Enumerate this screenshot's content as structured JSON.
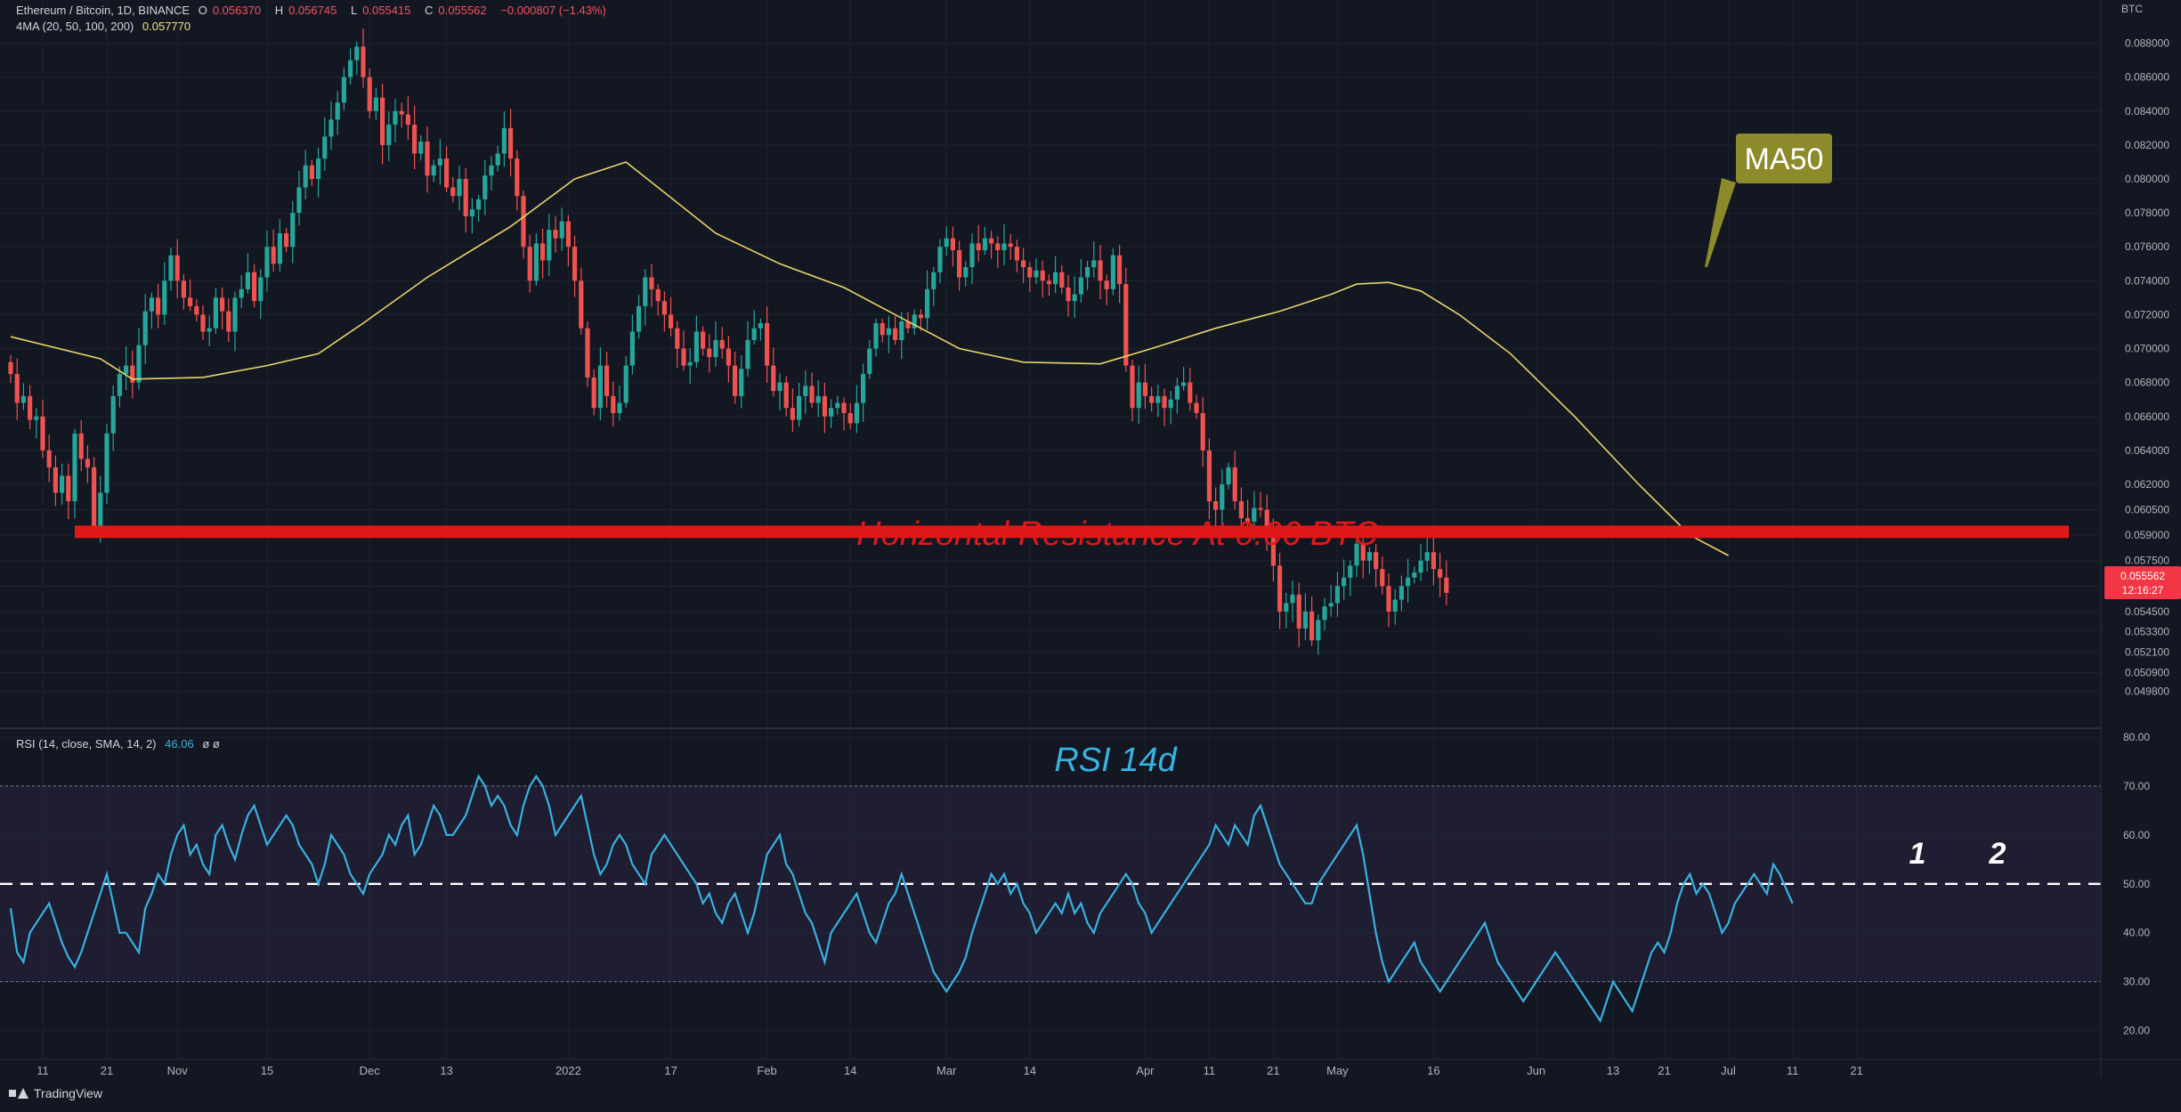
{
  "legend": {
    "title": "Ethereum / Bitcoin, 1D, BINANCE",
    "open_label": "O",
    "open": "0.056370",
    "high_label": "H",
    "high": "0.056745",
    "low_label": "L",
    "low": "0.055415",
    "close_label": "C",
    "close": "0.055562",
    "change": "−0.000807 (−1.43%)",
    "ma_label": "4MA (20, 50, 100, 200)",
    "ma_value": "0.057770",
    "rsi_label": "RSI (14, close, SMA, 14, 2)",
    "rsi_value": "46.06",
    "rsi_extra": "ø  ø"
  },
  "branding": {
    "name": "TradingView"
  },
  "currency": "BTC",
  "price_tag": {
    "value": "0.055562",
    "countdown": "12:16:27"
  },
  "annotations": {
    "ma_callout": "MA50",
    "resistance": "Horizontal Resistance At 0.06 BTC",
    "rsi_title": "RSI 14d",
    "mark1": "1",
    "mark2": "2"
  },
  "colors": {
    "background": "#131722",
    "up": "#26a69a",
    "down": "#ef5350",
    "ma": "#e8d66a",
    "rsi": "#38b2e0",
    "resistance": "#e01818",
    "callout_bg": "#8c8a2a"
  },
  "chart_data": [
    {
      "type": "candlestick",
      "ylim": [
        0.0483,
        0.0895
      ],
      "yticks": [
        "0.088000",
        "0.086000",
        "0.084000",
        "0.082000",
        "0.080000",
        "0.078000",
        "0.076000",
        "0.074000",
        "0.072000",
        "0.070000",
        "0.068000",
        "0.066000",
        "0.064000",
        "0.062000",
        "0.060500",
        "0.059000",
        "0.057500",
        "0.056000",
        "0.054500",
        "0.053300",
        "0.052100",
        "0.050900",
        "0.049800"
      ],
      "xticks": [
        {
          "label": "11",
          "t": 5
        },
        {
          "label": "21",
          "t": 15
        },
        {
          "label": "Nov",
          "t": 26
        },
        {
          "label": "15",
          "t": 40
        },
        {
          "label": "Dec",
          "t": 56
        },
        {
          "label": "13",
          "t": 68
        },
        {
          "label": "2022",
          "t": 87
        },
        {
          "label": "17",
          "t": 103
        },
        {
          "label": "Feb",
          "t": 118
        },
        {
          "label": "14",
          "t": 131
        },
        {
          "label": "Mar",
          "t": 146
        },
        {
          "label": "14",
          "t": 159
        },
        {
          "label": "Apr",
          "t": 177
        },
        {
          "label": "11",
          "t": 187
        },
        {
          "label": "21",
          "t": 197
        },
        {
          "label": "May",
          "t": 207
        },
        {
          "label": "16",
          "t": 222
        },
        {
          "label": "Jun",
          "t": 238
        },
        {
          "label": "13",
          "t": 250
        },
        {
          "label": "21",
          "t": 258
        },
        {
          "label": "Jul",
          "t": 268
        },
        {
          "label": "11",
          "t": 278
        },
        {
          "label": "21",
          "t": 288
        }
      ],
      "closes": [
        0.0685,
        0.0668,
        0.0672,
        0.0658,
        0.066,
        0.064,
        0.063,
        0.0615,
        0.0625,
        0.061,
        0.065,
        0.0635,
        0.063,
        0.0595,
        0.0615,
        0.065,
        0.0672,
        0.0685,
        0.069,
        0.068,
        0.0702,
        0.0722,
        0.073,
        0.072,
        0.074,
        0.0755,
        0.074,
        0.073,
        0.0725,
        0.072,
        0.071,
        0.0712,
        0.073,
        0.0722,
        0.071,
        0.073,
        0.0735,
        0.0745,
        0.0728,
        0.0742,
        0.076,
        0.075,
        0.0768,
        0.076,
        0.078,
        0.0795,
        0.0808,
        0.08,
        0.0812,
        0.0825,
        0.0835,
        0.0845,
        0.086,
        0.087,
        0.0878,
        0.086,
        0.084,
        0.0848,
        0.082,
        0.0832,
        0.084,
        0.0838,
        0.0832,
        0.0815,
        0.0822,
        0.0802,
        0.0808,
        0.0812,
        0.0795,
        0.079,
        0.08,
        0.0778,
        0.0782,
        0.0788,
        0.0802,
        0.0808,
        0.0815,
        0.083,
        0.0812,
        0.079,
        0.076,
        0.074,
        0.0762,
        0.0752,
        0.077,
        0.0765,
        0.0775,
        0.076,
        0.074,
        0.0712,
        0.0683,
        0.0665,
        0.069,
        0.0672,
        0.0662,
        0.0668,
        0.069,
        0.071,
        0.0725,
        0.0742,
        0.0735,
        0.0728,
        0.072,
        0.0712,
        0.07,
        0.069,
        0.0692,
        0.071,
        0.07,
        0.0695,
        0.0705,
        0.07,
        0.069,
        0.0672,
        0.0688,
        0.0705,
        0.0712,
        0.0715,
        0.069,
        0.0675,
        0.068,
        0.0665,
        0.0658,
        0.0672,
        0.0678,
        0.0668,
        0.0672,
        0.066,
        0.0665,
        0.0668,
        0.0662,
        0.0656,
        0.0668,
        0.0685,
        0.07,
        0.0715,
        0.0708,
        0.0712,
        0.0705,
        0.0716,
        0.0712,
        0.072,
        0.0718,
        0.0735,
        0.0745,
        0.076,
        0.0765,
        0.0758,
        0.0742,
        0.0748,
        0.0762,
        0.0758,
        0.0765,
        0.0762,
        0.0758,
        0.0762,
        0.076,
        0.0752,
        0.0748,
        0.0742,
        0.0746,
        0.074,
        0.0738,
        0.0745,
        0.0736,
        0.0728,
        0.0732,
        0.0742,
        0.0748,
        0.0752,
        0.074,
        0.0735,
        0.0755,
        0.0738,
        0.069,
        0.0665,
        0.068,
        0.0672,
        0.0668,
        0.0672,
        0.0665,
        0.067,
        0.0678,
        0.068,
        0.0668,
        0.0662,
        0.064,
        0.061,
        0.0605,
        0.062,
        0.063,
        0.061,
        0.06,
        0.0598,
        0.0606,
        0.0605,
        0.059,
        0.0572,
        0.0545,
        0.055,
        0.0555,
        0.0535,
        0.0545,
        0.0528,
        0.054,
        0.0548,
        0.055,
        0.056,
        0.0565,
        0.0572,
        0.0585,
        0.0575,
        0.058,
        0.057,
        0.056,
        0.0545,
        0.0552,
        0.056,
        0.0565,
        0.0568,
        0.0575,
        0.058,
        0.057,
        0.0565,
        0.0556
      ],
      "ma50": [
        [
          0,
          0.0707
        ],
        [
          14,
          0.0694
        ],
        [
          19,
          0.0682
        ],
        [
          30,
          0.0683
        ],
        [
          40,
          0.069
        ],
        [
          48,
          0.0697
        ],
        [
          55,
          0.0715
        ],
        [
          65,
          0.0742
        ],
        [
          78,
          0.0772
        ],
        [
          88,
          0.08
        ],
        [
          96,
          0.081
        ],
        [
          102,
          0.0792
        ],
        [
          110,
          0.0768
        ],
        [
          120,
          0.075
        ],
        [
          130,
          0.0736
        ],
        [
          140,
          0.0716
        ],
        [
          148,
          0.07
        ],
        [
          158,
          0.0692
        ],
        [
          170,
          0.0691
        ],
        [
          178,
          0.07
        ],
        [
          188,
          0.0712
        ],
        [
          198,
          0.0722
        ],
        [
          206,
          0.0732
        ],
        [
          210,
          0.0738
        ],
        [
          215,
          0.0739
        ],
        [
          220,
          0.0734
        ],
        [
          226,
          0.072
        ],
        [
          234,
          0.0697
        ],
        [
          244,
          0.066
        ],
        [
          254,
          0.062
        ],
        [
          262,
          0.059
        ],
        [
          268,
          0.0578
        ]
      ],
      "resistance_level": 0.0592
    },
    {
      "type": "line",
      "title": "RSI 14d",
      "ylim": [
        15,
        80
      ],
      "yticks": [
        80,
        70,
        60,
        50,
        40,
        30,
        20
      ],
      "bands": [
        30,
        70
      ],
      "midline": 50,
      "values": [
        45,
        36,
        34,
        40,
        42,
        44,
        46,
        42,
        38,
        35,
        33,
        36,
        40,
        44,
        48,
        52,
        46,
        40,
        40,
        38,
        36,
        45,
        48,
        52,
        50,
        56,
        60,
        62,
        56,
        58,
        54,
        52,
        60,
        62,
        58,
        55,
        60,
        64,
        66,
        62,
        58,
        60,
        62,
        64,
        62,
        58,
        56,
        54,
        50,
        54,
        60,
        58,
        56,
        52,
        50,
        48,
        52,
        54,
        56,
        60,
        58,
        62,
        64,
        56,
        58,
        62,
        66,
        64,
        60,
        60,
        62,
        64,
        68,
        72,
        70,
        66,
        68,
        66,
        62,
        60,
        66,
        70,
        72,
        70,
        66,
        60,
        62,
        64,
        66,
        68,
        62,
        56,
        52,
        54,
        58,
        60,
        58,
        54,
        52,
        50,
        56,
        58,
        60,
        58,
        56,
        54,
        52,
        50,
        46,
        48,
        44,
        42,
        46,
        48,
        44,
        40,
        44,
        50,
        56,
        58,
        60,
        54,
        52,
        48,
        44,
        42,
        38,
        34,
        40,
        42,
        44,
        46,
        48,
        44,
        40,
        38,
        42,
        46,
        48,
        52,
        48,
        44,
        40,
        36,
        32,
        30,
        28,
        30,
        32,
        35,
        40,
        44,
        48,
        52,
        50,
        52,
        48,
        50,
        46,
        44,
        40,
        42,
        44,
        46,
        44,
        48,
        44,
        46,
        42,
        40,
        44,
        46,
        48,
        50,
        52,
        50,
        46,
        44,
        40,
        42,
        44,
        46,
        48,
        50,
        52,
        54,
        56,
        58,
        62,
        60,
        58,
        62,
        60,
        58,
        64,
        66,
        62,
        58,
        54,
        52,
        50,
        48,
        46,
        46,
        50,
        52,
        54,
        56,
        58,
        60,
        62,
        56,
        48,
        40,
        34,
        30,
        32,
        34,
        36,
        38,
        34,
        32,
        30,
        28,
        30,
        32,
        34,
        36,
        38,
        40,
        42,
        38,
        34,
        32,
        30,
        28,
        26,
        28,
        30,
        32,
        34,
        36,
        34,
        32,
        30,
        28,
        26,
        24,
        22,
        26,
        30,
        28,
        26,
        24,
        28,
        32,
        36,
        38,
        36,
        40,
        46,
        50,
        52,
        48,
        50,
        48,
        44,
        40,
        42,
        46,
        48,
        50,
        52,
        50,
        48,
        54,
        52,
        49,
        46
      ]
    }
  ]
}
